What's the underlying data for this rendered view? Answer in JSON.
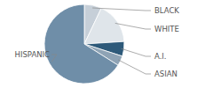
{
  "chart_data": {
    "type": "pie",
    "categories": [
      "BLACK",
      "WHITE",
      "A.I.",
      "ASIAN",
      "HISPANIC"
    ],
    "values": [
      7,
      17,
      6,
      4,
      66
    ],
    "colors": [
      "#c6cfd8",
      "#dfe5ea",
      "#2e5a7a",
      "#8ea3b5",
      "#6f8ea8"
    ]
  }
}
